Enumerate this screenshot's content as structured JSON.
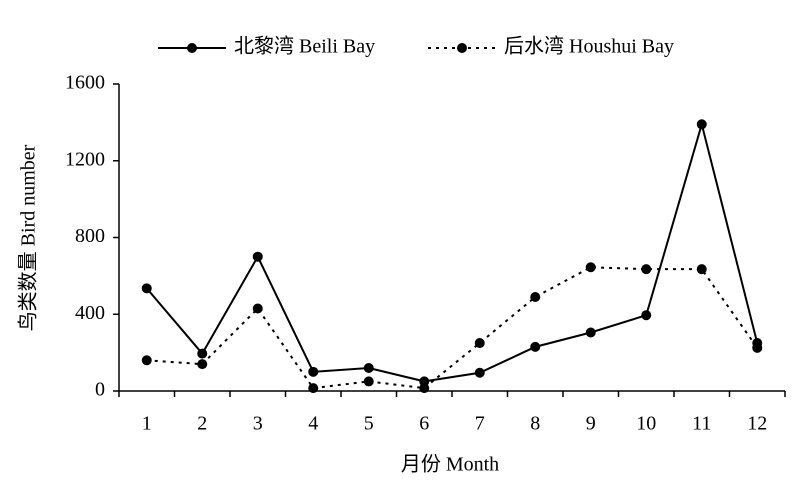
{
  "chart_data": {
    "type": "line",
    "x_label": "月份 Month",
    "y_label": "鸟类数量 Bird number",
    "categories": [
      "1",
      "2",
      "3",
      "4",
      "5",
      "6",
      "7",
      "8",
      "9",
      "10",
      "11",
      "12"
    ],
    "series": [
      {
        "name": "北黎湾 Beili Bay",
        "color": "#000000",
        "dash": "solid",
        "values": [
          535,
          195,
          700,
          100,
          120,
          50,
          95,
          230,
          305,
          395,
          1390,
          250
        ]
      },
      {
        "name": "后水湾 Houshui Bay",
        "color": "#000000",
        "dash": "dotted",
        "values": [
          160,
          140,
          430,
          15,
          50,
          15,
          250,
          490,
          645,
          635,
          635,
          225
        ]
      }
    ],
    "ylim": [
      0,
      1600
    ],
    "yticks": [
      0,
      400,
      800,
      1200,
      1600
    ],
    "grid": false
  }
}
